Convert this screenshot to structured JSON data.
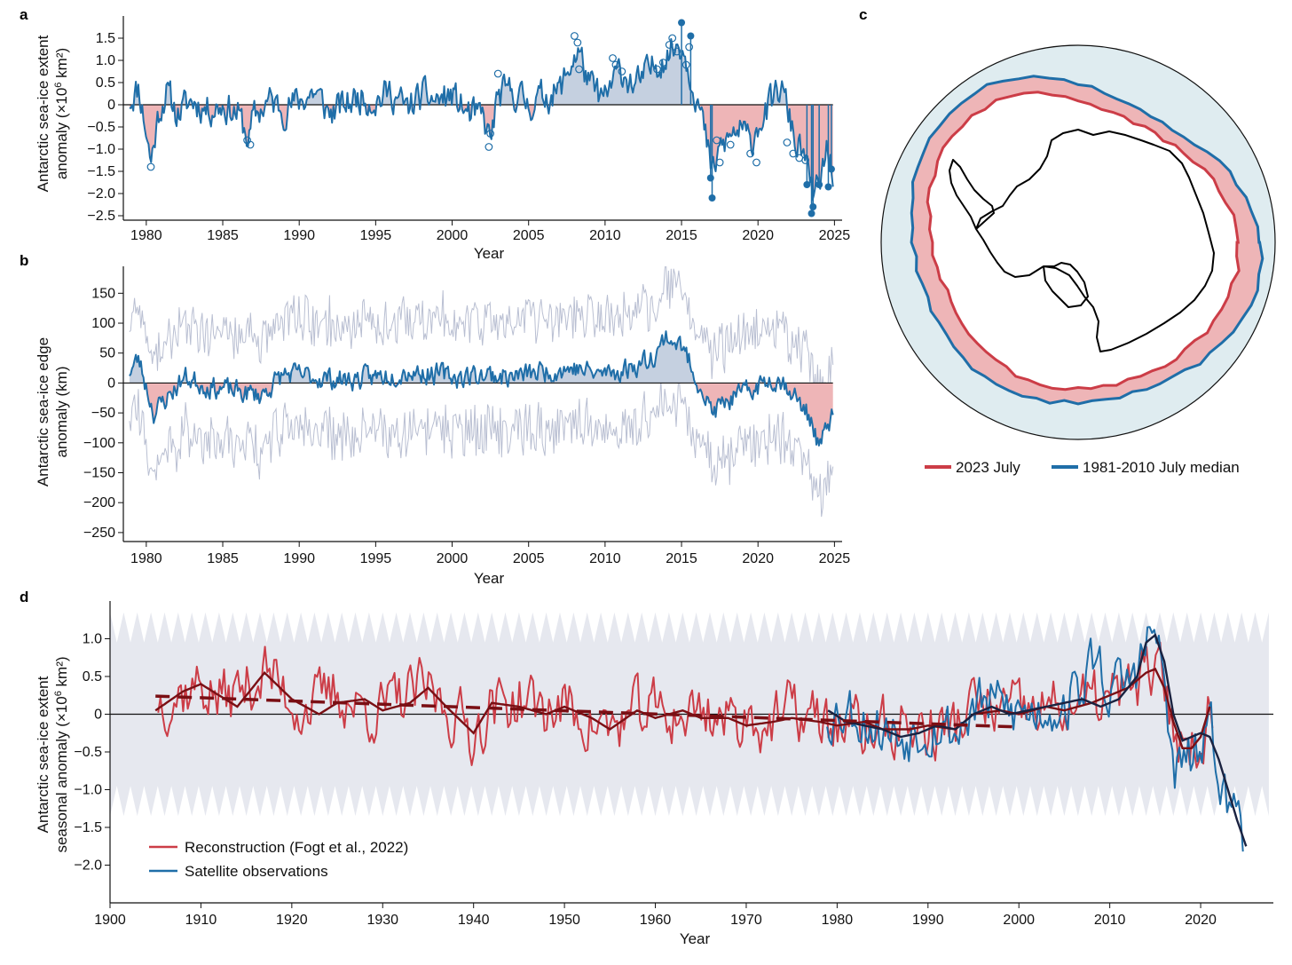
{
  "colors": {
    "blue": "#1f6ea8",
    "red": "#cc3d47",
    "dark_red": "#7a0f14",
    "navy": "#1a2240",
    "fill_pos": "#c5d0e0",
    "fill_neg": "#eeb5b7",
    "envelope": "#e6e8ef",
    "ocean": "#dfecf0",
    "land": "#ffffff"
  },
  "chart_data": [
    {
      "id": "a",
      "panel_label": "a",
      "type": "line",
      "title": "",
      "xlabel": "Year",
      "ylabel_line1": "Antarctic sea-ice extent",
      "ylabel_line2": "anomaly (×10",
      "ylabel_sup": "6",
      "ylabel_end": " km²)",
      "xlim": [
        1978.5,
        2025.5
      ],
      "ylim": [
        -2.6,
        2.0
      ],
      "xticks": [
        1980,
        1985,
        1990,
        1995,
        2000,
        2005,
        2010,
        2015,
        2020,
        2025
      ],
      "yticks": [
        -2.5,
        -2.0,
        -1.5,
        -1.0,
        -0.5,
        0,
        0.5,
        1.0,
        1.5
      ],
      "ytick_labels": [
        "−2.5",
        "−2.0",
        "−1.5",
        "−1.0",
        "−0.5",
        "0",
        "0.5",
        "1.0",
        "1.5"
      ],
      "series_desc": "Monthly anomaly; shaded blue above 0, red below; circles mark record months",
      "anchors": {
        "x": [
          1978.9,
          1979.5,
          1980.0,
          1980.3,
          1980.8,
          1981.3,
          1982.0,
          1983.0,
          1984.0,
          1985.0,
          1986.0,
          1986.7,
          1987.0,
          1988.0,
          1989.0,
          1990.0,
          1991.0,
          1992.0,
          1993.0,
          1994.0,
          1995.0,
          1996.0,
          1997.0,
          1998.0,
          1999.0,
          2000.0,
          2001.0,
          2002.0,
          2002.5,
          2003.0,
          2004.0,
          2005.0,
          2006.0,
          2007.0,
          2008.0,
          2008.3,
          2009.0,
          2010.0,
          2010.5,
          2011.0,
          2012.0,
          2013.0,
          2013.5,
          2014.0,
          2014.5,
          2015.0,
          2015.5,
          2016.0,
          2016.5,
          2017.0,
          2017.5,
          2018.0,
          2018.5,
          2019.0,
          2019.5,
          2020.0,
          2020.5,
          2021.0,
          2021.5,
          2022.0,
          2022.5,
          2023.0,
          2023.5,
          2024.0,
          2024.5,
          2024.9
        ],
        "y": [
          0.1,
          0.4,
          -0.6,
          -1.3,
          -0.2,
          0.3,
          -0.2,
          0.1,
          -0.1,
          0.0,
          -0.2,
          -0.8,
          -0.3,
          0.1,
          -0.1,
          0.1,
          0.3,
          -0.2,
          0.0,
          0.2,
          0.1,
          0.3,
          -0.1,
          0.2,
          0.1,
          0.2,
          -0.2,
          -0.3,
          -0.8,
          0.2,
          0.3,
          0.0,
          0.2,
          0.3,
          1.1,
          1.2,
          0.4,
          0.1,
          0.5,
          0.8,
          0.4,
          0.8,
          1.0,
          1.1,
          1.3,
          1.4,
          0.8,
          0.2,
          -0.6,
          -1.6,
          -1.0,
          -0.8,
          -0.6,
          -0.6,
          -0.9,
          -0.4,
          -0.2,
          0.1,
          0.4,
          -0.2,
          -0.9,
          -1.1,
          -2.0,
          -1.9,
          -1.0,
          -1.5
        ]
      },
      "record_markers_open": [
        [
          1980.3,
          -1.4
        ],
        [
          1986.6,
          -0.8
        ],
        [
          1986.8,
          -0.9
        ],
        [
          2002.4,
          -0.95
        ],
        [
          2002.5,
          -0.65
        ],
        [
          2003.0,
          0.7
        ],
        [
          2008.0,
          1.55
        ],
        [
          2008.2,
          1.4
        ],
        [
          2008.3,
          0.8
        ],
        [
          2010.5,
          1.05
        ],
        [
          2010.7,
          0.9
        ],
        [
          2011.1,
          0.75
        ],
        [
          2013.4,
          0.8
        ],
        [
          2013.8,
          0.95
        ],
        [
          2014.2,
          1.35
        ],
        [
          2014.4,
          1.5
        ],
        [
          2014.7,
          1.2
        ],
        [
          2015.3,
          0.9
        ],
        [
          2015.5,
          1.3
        ],
        [
          2017.3,
          -0.8
        ],
        [
          2017.5,
          -1.3
        ],
        [
          2018.2,
          -0.9
        ],
        [
          2019.5,
          -1.1
        ],
        [
          2019.9,
          -1.3
        ],
        [
          2021.9,
          -0.85
        ],
        [
          2022.3,
          -1.1
        ],
        [
          2022.7,
          -1.2
        ],
        [
          2023.1,
          -1.25
        ]
      ],
      "record_markers_filled": [
        [
          2015.0,
          1.85
        ],
        [
          2015.6,
          1.55
        ],
        [
          2016.9,
          -1.65
        ],
        [
          2017.0,
          -2.1
        ],
        [
          2023.2,
          -1.8
        ],
        [
          2023.5,
          -2.45
        ],
        [
          2023.6,
          -2.3
        ],
        [
          2024.0,
          -1.8
        ],
        [
          2024.6,
          -1.85
        ],
        [
          2024.8,
          -1.45
        ]
      ]
    },
    {
      "id": "b",
      "panel_label": "b",
      "type": "line",
      "title": "",
      "xlabel": "Year",
      "ylabel_line1": "Antarctic sea-ice edge",
      "ylabel_line2": "anomaly (km)",
      "xlim": [
        1978.5,
        2025.5
      ],
      "ylim": [
        -265,
        195
      ],
      "xticks": [
        1980,
        1985,
        1990,
        1995,
        2000,
        2005,
        2010,
        2015,
        2020,
        2025
      ],
      "yticks": [
        -250,
        -200,
        -150,
        -100,
        -50,
        0,
        50,
        100,
        150
      ],
      "ytick_labels": [
        "−250",
        "−200",
        "−150",
        "−100",
        "−50",
        "0",
        "50",
        "100",
        "150"
      ],
      "series_desc": "Mean sea-ice edge anomaly (blue) with min/max envelope (thin grey)",
      "anchors": {
        "x": [
          1978.9,
          1979.5,
          1980.5,
          1981.5,
          1982.5,
          1984.0,
          1986.0,
          1987.5,
          1989.0,
          1991.0,
          1993.0,
          1995.0,
          1997.0,
          1999.0,
          2000.5,
          2002.0,
          2004.0,
          2006.0,
          2008.0,
          2009.5,
          2011.0,
          2012.5,
          2013.5,
          2014.0,
          2015.0,
          2016.0,
          2017.0,
          2018.0,
          2019.0,
          2020.0,
          2021.0,
          2022.0,
          2022.7,
          2023.5,
          2024.0,
          2024.9
        ],
        "y": [
          20,
          40,
          -50,
          -20,
          10,
          -5,
          -15,
          -20,
          15,
          10,
          5,
          10,
          20,
          15,
          10,
          15,
          10,
          20,
          25,
          15,
          20,
          35,
          55,
          80,
          60,
          10,
          -50,
          -30,
          -20,
          -5,
          10,
          -5,
          -35,
          -60,
          -110,
          -50
        ]
      }
    },
    {
      "id": "c",
      "panel_label": "c",
      "type": "map",
      "title": "",
      "legend": [
        {
          "label": "2023 July",
          "color": "#cc3d47"
        },
        {
          "label": "1981-2010 July median",
          "color": "#1f6ea8"
        }
      ]
    },
    {
      "id": "d",
      "panel_label": "d",
      "type": "line",
      "title": "",
      "xlabel": "Year",
      "ylabel_line1": "Antarctic sea-ice extent",
      "ylabel_line2": "seasonal anomaly (×10",
      "ylabel_sup": "6",
      "ylabel_end": " km²)",
      "xlim": [
        1900,
        2028
      ],
      "ylim": [
        -2.5,
        1.5
      ],
      "xticks": [
        1900,
        1910,
        1920,
        1930,
        1940,
        1950,
        1960,
        1970,
        1980,
        1990,
        2000,
        2010,
        2020
      ],
      "yticks": [
        -2.0,
        -1.5,
        -1.0,
        -0.5,
        0,
        0.5,
        1.0
      ],
      "ytick_labels": [
        "−2.0",
        "−1.5",
        "−1.0",
        "−0.5",
        "0",
        "0.5",
        "1.0"
      ],
      "envelope": {
        "outer": 1.35,
        "inner": 0.95,
        "period_years": 1.5
      },
      "reconstruction": {
        "name": "Reconstruction (Fogt et al., 2022)",
        "x_range": [
          1905.3,
          2021.5
        ],
        "anchors": {
          "x": [
            1905.3,
            1908,
            1910,
            1912,
            1915,
            1917,
            1919,
            1921,
            1923,
            1925,
            1927,
            1930,
            1933,
            1935,
            1937,
            1940,
            1942,
            1945,
            1948,
            1950,
            1953,
            1955,
            1958,
            1960,
            1963,
            1965,
            1968,
            1970,
            1973,
            1975,
            1978,
            1980,
            1983,
            1985,
            1988,
            1990,
            1993,
            1995,
            1998,
            2000,
            2003,
            2005,
            2008,
            2010,
            2012,
            2014,
            2015.5,
            2017,
            2018.5,
            2020,
            2021.5
          ],
          "y": [
            0.2,
            0.3,
            0.4,
            0.2,
            0.35,
            0.6,
            0.3,
            0.1,
            0.15,
            0.3,
            0.1,
            0.05,
            0.25,
            0.3,
            0.1,
            -0.25,
            0.1,
            0.2,
            0.05,
            0.1,
            -0.1,
            -0.2,
            0.0,
            0.05,
            -0.05,
            0.1,
            -0.1,
            0.0,
            -0.15,
            0.05,
            -0.1,
            -0.15,
            -0.2,
            -0.2,
            -0.15,
            -0.25,
            -0.15,
            0.1,
            0.05,
            0.0,
            0.05,
            0.1,
            0.15,
            0.2,
            0.3,
            0.55,
            0.5,
            -0.1,
            -0.5,
            -0.3,
            0.2
          ]
        }
      },
      "satellite": {
        "name": "Satellite observations",
        "x_range": [
          1978.9,
          2024.8
        ],
        "anchors": {
          "x": [
            1978.9,
            1981,
            1983,
            1985,
            1987,
            1989,
            1991,
            1993,
            1995,
            1997,
            1999,
            2001,
            2003,
            2005,
            2007,
            2008.5,
            2010,
            2012,
            2014,
            2015,
            2016,
            2017,
            2018,
            2019,
            2020,
            2021,
            2022,
            2023,
            2024,
            2024.8
          ],
          "y": [
            0.0,
            0.1,
            -0.05,
            -0.2,
            -0.3,
            -0.15,
            -0.1,
            -0.25,
            0.1,
            0.15,
            0.05,
            0.0,
            0.1,
            0.15,
            0.35,
            0.8,
            0.3,
            0.4,
            0.9,
            1.1,
            0.4,
            -0.8,
            -0.7,
            -0.6,
            -0.5,
            -0.3,
            -0.6,
            -1.3,
            -1.2,
            -1.6
          ]
        }
      },
      "reconstruction_smooth": {
        "x": [
          1905,
          1908,
          1910,
          1912,
          1914,
          1917,
          1920,
          1923,
          1925,
          1928,
          1930,
          1933,
          1935,
          1937,
          1940,
          1942,
          1945,
          1948,
          1950,
          1953,
          1955,
          1958,
          1960,
          1963,
          1965,
          1968,
          1970,
          1973,
          1975,
          1978,
          1980,
          1983,
          1985,
          1988,
          1990,
          1993,
          1995,
          1998,
          2000,
          2003,
          2005,
          2008,
          2010,
          2012,
          2014,
          2015,
          2016,
          2017,
          2018,
          2019,
          2020,
          2021
        ],
        "y": [
          0.05,
          0.3,
          0.4,
          0.25,
          0.1,
          0.55,
          0.2,
          0.0,
          0.15,
          0.2,
          0.05,
          0.15,
          0.35,
          0.1,
          -0.25,
          0.15,
          0.1,
          0.0,
          0.1,
          -0.05,
          -0.2,
          0.05,
          -0.05,
          0.05,
          -0.05,
          -0.05,
          -0.15,
          -0.1,
          -0.05,
          -0.1,
          -0.15,
          -0.1,
          -0.2,
          -0.2,
          -0.15,
          -0.2,
          0.0,
          0.05,
          0.0,
          0.1,
          0.05,
          0.15,
          0.25,
          0.35,
          0.55,
          0.6,
          0.35,
          -0.1,
          -0.45,
          -0.45,
          -0.3,
          0.1
        ]
      },
      "satellite_smooth": {
        "x": [
          1979,
          1981,
          1983,
          1985,
          1987,
          1989,
          1991,
          1993,
          1995,
          1997,
          1999,
          2001,
          2003,
          2005,
          2007,
          2009,
          2011,
          2013,
          2014,
          2015,
          2016,
          2017,
          2018,
          2019,
          2020,
          2021,
          2022,
          2023,
          2024,
          2025
        ],
        "y": [
          0.05,
          -0.1,
          -0.15,
          -0.2,
          -0.3,
          -0.25,
          -0.15,
          -0.2,
          0.0,
          0.1,
          0.0,
          0.05,
          0.1,
          0.15,
          0.2,
          0.1,
          0.2,
          0.5,
          0.95,
          1.05,
          0.7,
          0.0,
          -0.35,
          -0.3,
          -0.25,
          -0.3,
          -0.6,
          -1.0,
          -1.4,
          -1.75
        ]
      },
      "trend": {
        "x": [
          1905,
          2000
        ],
        "y": [
          0.24,
          -0.17
        ]
      },
      "legend": [
        {
          "label": "Reconstruction (Fogt et al., 2022)",
          "color": "#cc3d47"
        },
        {
          "label": "Satellite observations",
          "color": "#1f6ea8"
        }
      ]
    }
  ]
}
